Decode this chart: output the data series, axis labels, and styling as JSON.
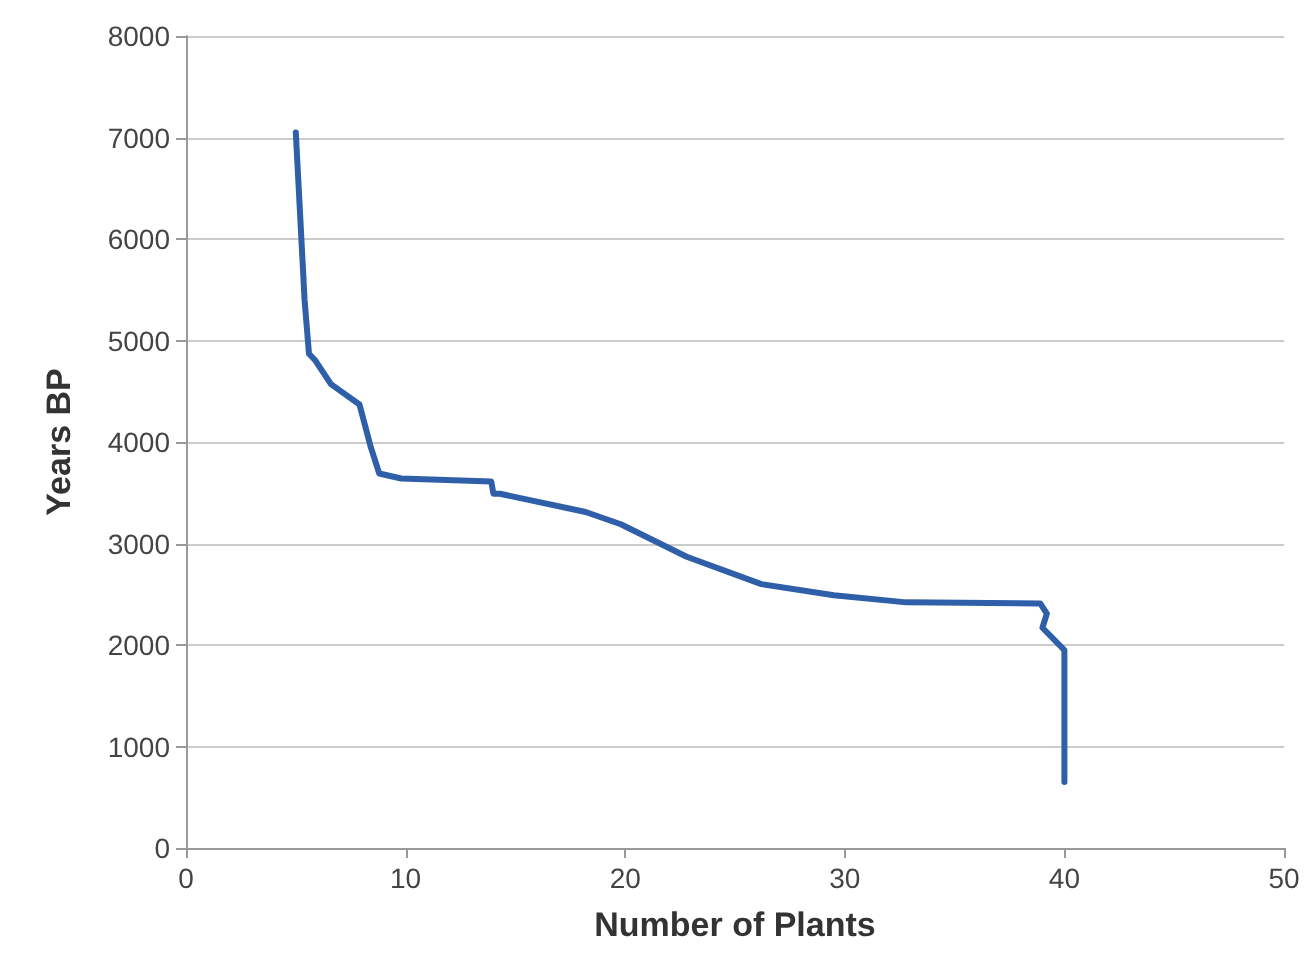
{
  "chart_data": {
    "type": "line",
    "xlabel": "Number of Plants",
    "ylabel": "Years BP",
    "series": [
      {
        "color": "#2e5fa8",
        "x": [
          5.0,
          5.4,
          5.6,
          5.9,
          6.6,
          7.9,
          8.4,
          8.8,
          9.8,
          13.9,
          14.0,
          14.3,
          18.2,
          19.8,
          22.8,
          26.2,
          29.5,
          32.8,
          38.9,
          39.2,
          39.0,
          40.0,
          40.0
        ],
        "values": [
          7050,
          5400,
          4870,
          4800,
          4570,
          4370,
          3960,
          3690,
          3640,
          3610,
          3490,
          3490,
          3310,
          3190,
          2870,
          2600,
          2490,
          2420,
          2410,
          2310,
          2170,
          1950,
          650
        ]
      }
    ],
    "xlim": [
      0,
      50
    ],
    "xticks": [
      0,
      10,
      20,
      30,
      40,
      50
    ],
    "ylim": [
      0,
      8000
    ],
    "yticks": [
      0,
      1000,
      2000,
      3000,
      4000,
      5000,
      6000,
      7000,
      8000
    ],
    "grid": "y",
    "marker": "none",
    "line_style": "solid"
  }
}
